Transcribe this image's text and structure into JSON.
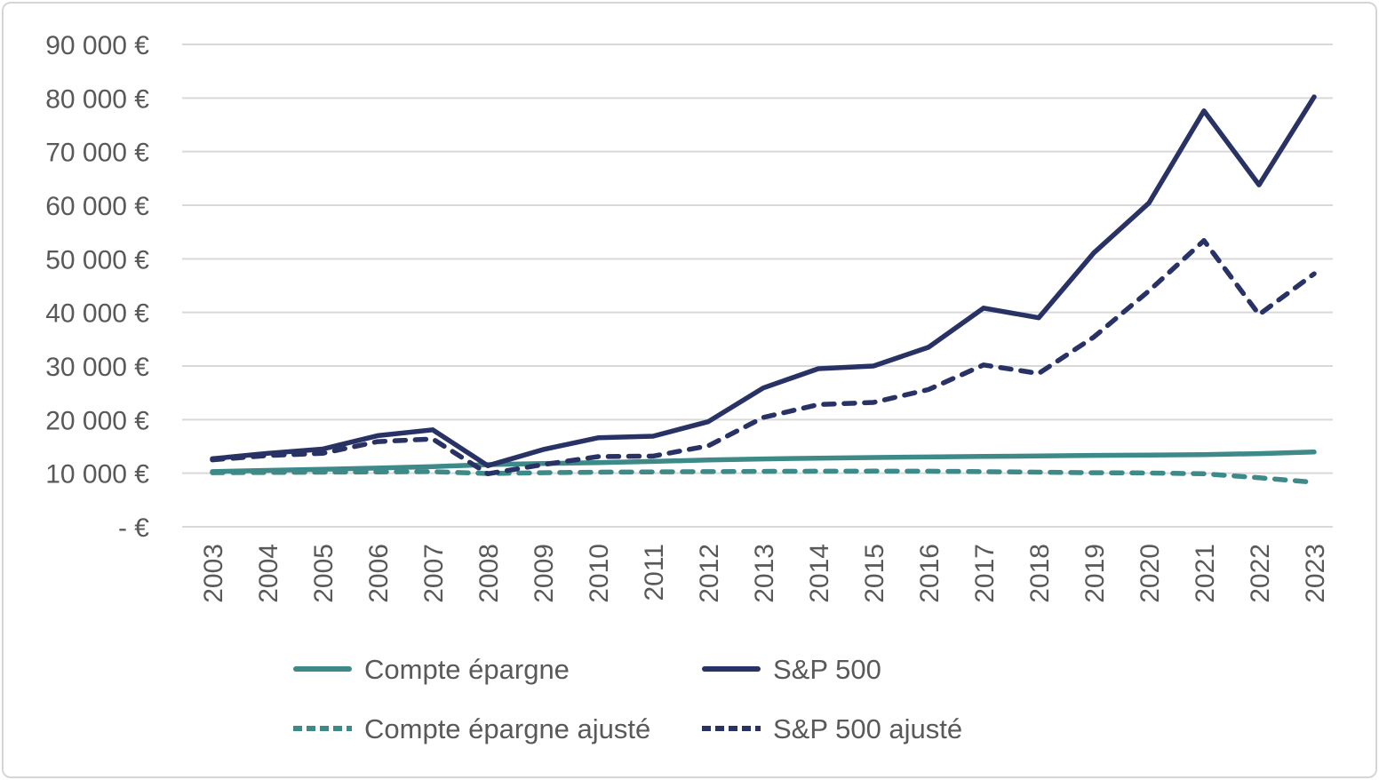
{
  "chart_data": {
    "type": "line",
    "title": "",
    "xlabel": "",
    "ylabel": "",
    "grid": true,
    "legend_position": "bottom",
    "ylim": [
      0,
      90000
    ],
    "ytick_step": 10000,
    "ytick_labels": [
      "-  €",
      "10 000 €",
      "20 000 €",
      "30 000 €",
      "40 000 €",
      "50 000 €",
      "60 000 €",
      "70 000 €",
      "80 000 €",
      "90 000 €"
    ],
    "x": [
      2003,
      2004,
      2005,
      2006,
      2007,
      2008,
      2009,
      2010,
      2011,
      2012,
      2013,
      2014,
      2015,
      2016,
      2017,
      2018,
      2019,
      2020,
      2021,
      2022,
      2023
    ],
    "series": [
      {
        "id": "compte-epargne",
        "name": "Compte épargne",
        "color": "#3E8A88",
        "dashed": false,
        "values": [
          10300,
          10520,
          10720,
          10950,
          11230,
          11600,
          11800,
          11980,
          12200,
          12470,
          12670,
          12810,
          12930,
          13030,
          13130,
          13230,
          13330,
          13400,
          13470,
          13660,
          13960
        ]
      },
      {
        "id": "sp500",
        "name": "S&P 500",
        "color": "#293264",
        "dashed": false,
        "values": [
          12700,
          13700,
          14500,
          17000,
          18100,
          11400,
          14400,
          16600,
          16900,
          19600,
          25900,
          29500,
          30000,
          33500,
          40800,
          39000,
          51100,
          60400,
          77600,
          63800,
          80200
        ]
      },
      {
        "id": "compte-epargne-ajuste",
        "name": "Compte épargne ajusté",
        "color": "#3E8A88",
        "dashed": true,
        "values": [
          10100,
          10150,
          10200,
          10250,
          10300,
          9950,
          10100,
          10200,
          10250,
          10300,
          10350,
          10380,
          10400,
          10380,
          10300,
          10200,
          10100,
          10050,
          9900,
          9150,
          8300
        ]
      },
      {
        "id": "sp500-ajuste",
        "name": "S&P 500 ajusté",
        "color": "#293264",
        "dashed": true,
        "values": [
          12500,
          13300,
          13700,
          15900,
          16400,
          9900,
          11600,
          13100,
          13200,
          15100,
          20400,
          22800,
          23200,
          25600,
          30200,
          28600,
          35400,
          44000,
          53400,
          39600,
          47200
        ]
      }
    ],
    "colors": {
      "gridline": "#D9D9D9",
      "axis_text": "#595959",
      "teal": "#3E8A88",
      "navy": "#293264"
    }
  }
}
